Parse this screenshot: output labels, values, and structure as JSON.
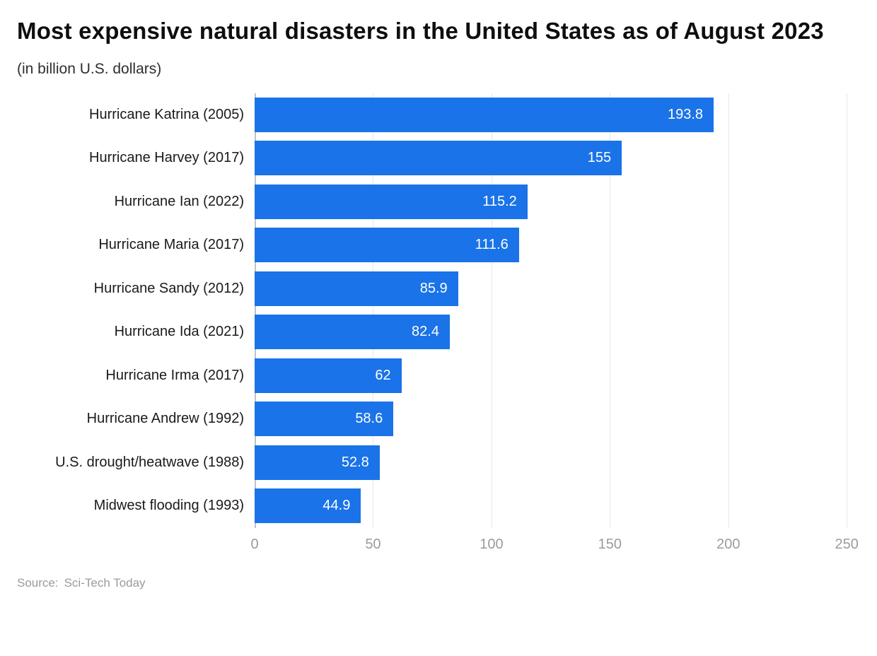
{
  "header": {
    "title": "Most expensive natural disasters in the United States as of August 2023",
    "subtitle": "(in billion U.S. dollars)"
  },
  "source": {
    "label": "Source:",
    "name": "Sci-Tech Today"
  },
  "chart_data": {
    "type": "bar",
    "orientation": "horizontal",
    "title": "Most expensive natural disasters in the United States as of August 2023",
    "subtitle": "(in billion U.S. dollars)",
    "categories": [
      "Hurricane Katrina (2005)",
      "Hurricane Harvey (2017)",
      "Hurricane Ian (2022)",
      "Hurricane Maria (2017)",
      "Hurricane Sandy (2012)",
      "Hurricane Ida (2021)",
      "Hurricane Irma (2017)",
      "Hurricane Andrew (1992)",
      "U.S. drought/heatwave (1988)",
      "Midwest flooding (1993)"
    ],
    "values": [
      193.8,
      155,
      115.2,
      111.6,
      85.9,
      82.4,
      62,
      58.6,
      52.8,
      44.9
    ],
    "value_labels": [
      "193.8",
      "155",
      "115.2",
      "111.6",
      "85.9",
      "82.4",
      "62",
      "58.6",
      "52.8",
      "44.9"
    ],
    "xlabel": "",
    "ylabel": "",
    "xlim": [
      0,
      250
    ],
    "x_ticks": [
      0,
      50,
      100,
      150,
      200,
      250
    ],
    "grid": true,
    "legend": false,
    "bar_color": "#1a73e8",
    "value_label_color": "#ffffff",
    "tick_label_color": "#9b9b9b"
  }
}
